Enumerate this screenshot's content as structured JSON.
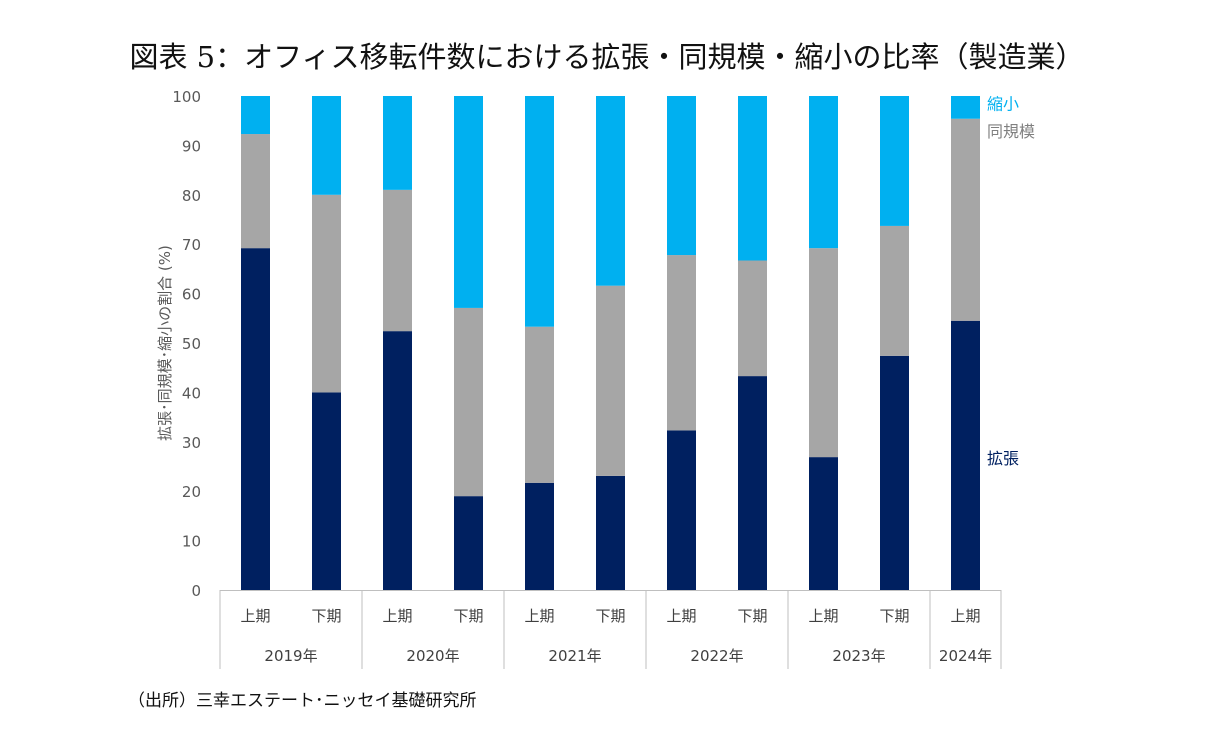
{
  "figure": {
    "title": "図表 5：オフィス移転件数における拡張・同規模・縮小の比率（製造業）",
    "source": "（出所）三幸エステート･ニッセイ基礎研究所"
  },
  "colors": {
    "拡張": "#002060",
    "同規模": "#a6a6a6",
    "縮小": "#00b0f0",
    "axis": "#bfbfbf",
    "tick_text": "#595959"
  },
  "chart_data": {
    "type": "bar",
    "stacked": true,
    "title": "図表 5：オフィス移転件数における拡張・同規模・縮小の比率（製造業）",
    "ylabel": "拡張･同規模･縮小の割合 (%)",
    "xlabel": "",
    "ylim": [
      0,
      100
    ],
    "yticks": [
      0,
      10,
      20,
      30,
      40,
      50,
      60,
      70,
      80,
      90,
      100
    ],
    "grid": false,
    "legend": "right (labels next to last bar)",
    "categories": [
      "上期",
      "下期",
      "上期",
      "下期",
      "上期",
      "下期",
      "上期",
      "下期",
      "上期",
      "下期",
      "上期"
    ],
    "groups": [
      {
        "label": "2019年",
        "count": 2
      },
      {
        "label": "2020年",
        "count": 2
      },
      {
        "label": "2021年",
        "count": 2
      },
      {
        "label": "2022年",
        "count": 2
      },
      {
        "label": "2023年",
        "count": 2
      },
      {
        "label": "2024年",
        "count": 1
      }
    ],
    "series": [
      {
        "name": "拡張",
        "values": [
          69.2,
          40.0,
          52.4,
          19.0,
          21.7,
          23.1,
          32.3,
          43.3,
          26.9,
          47.4,
          54.5
        ]
      },
      {
        "name": "同規模",
        "values": [
          23.1,
          40.0,
          28.6,
          38.1,
          31.6,
          38.5,
          35.5,
          23.4,
          42.3,
          26.3,
          40.9
        ]
      },
      {
        "name": "縮小",
        "values": [
          7.7,
          20.0,
          19.0,
          42.9,
          46.7,
          38.4,
          32.2,
          33.3,
          30.8,
          26.3,
          4.6
        ]
      }
    ]
  }
}
